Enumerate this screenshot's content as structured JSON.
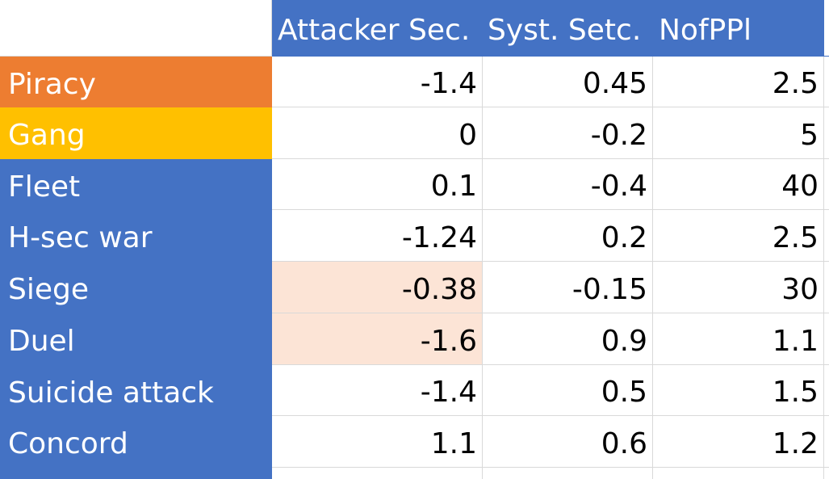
{
  "columns": [
    "Attacker Sec.",
    "Syst. Setc.",
    "NofPPl"
  ],
  "rows": [
    {
      "label": "Piracy",
      "label_bg": "#ed7d31",
      "values": [
        "-1.4",
        "0.45",
        "2.5"
      ],
      "highlight": [
        false,
        false,
        false
      ]
    },
    {
      "label": "Gang",
      "label_bg": "#ffc000",
      "values": [
        "0",
        "-0.2",
        "5"
      ],
      "highlight": [
        false,
        false,
        false
      ]
    },
    {
      "label": "Fleet",
      "label_bg": "#4472c4",
      "values": [
        "0.1",
        "-0.4",
        "40"
      ],
      "highlight": [
        false,
        false,
        false
      ]
    },
    {
      "label": "H-sec war",
      "label_bg": "#4472c4",
      "values": [
        "-1.24",
        "0.2",
        "2.5"
      ],
      "highlight": [
        false,
        false,
        false
      ]
    },
    {
      "label": "Siege",
      "label_bg": "#4472c4",
      "values": [
        "-0.38",
        "-0.15",
        "30"
      ],
      "highlight": [
        true,
        false,
        false
      ]
    },
    {
      "label": "Duel",
      "label_bg": "#4472c4",
      "values": [
        "-1.6",
        "0.9",
        "1.1"
      ],
      "highlight": [
        true,
        false,
        false
      ]
    },
    {
      "label": "Suicide attack",
      "label_bg": "#4472c4",
      "values": [
        "-1.4",
        "0.5",
        "1.5"
      ],
      "highlight": [
        false,
        false,
        false
      ]
    },
    {
      "label": "Concord",
      "label_bg": "#4472c4",
      "values": [
        "1.1",
        "0.6",
        "1.2"
      ],
      "highlight": [
        false,
        false,
        false
      ]
    }
  ],
  "colors": {
    "header_bg": "#4472c4",
    "highlight_bg": "#fce4d6",
    "gridline": "#d9d9d9"
  }
}
